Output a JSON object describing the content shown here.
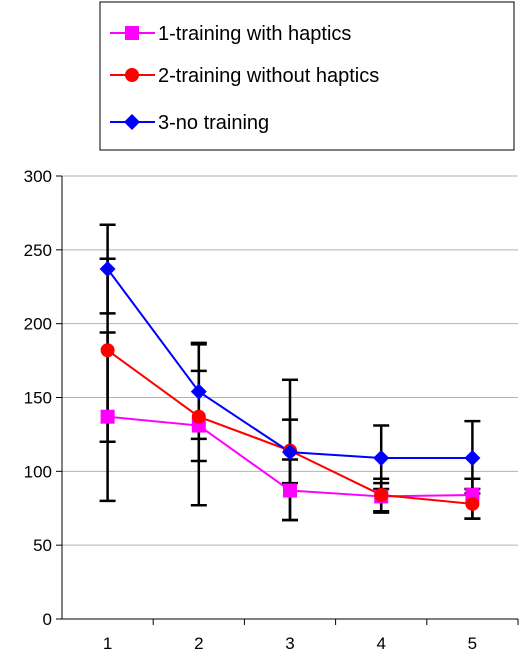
{
  "chart_data": {
    "type": "line",
    "title": "",
    "xlabel": "",
    "ylabel": "",
    "x": [
      1,
      2,
      3,
      4,
      5
    ],
    "x_ticks": [
      "1",
      "2",
      "3",
      "4",
      "5"
    ],
    "ylim": [
      0,
      300
    ],
    "y_ticks": [
      "0",
      "50",
      "100",
      "150",
      "200",
      "250",
      "300"
    ],
    "grid": "horizontal",
    "legend_position": "top-right",
    "series": [
      {
        "name": "1-training with haptics",
        "color": "#ff00ff",
        "marker": "square",
        "values": [
          137,
          131,
          87,
          83,
          84
        ],
        "error_low": [
          80,
          77,
          67,
          72,
          68
        ],
        "error_high": [
          194,
          186,
          108,
          95,
          95
        ]
      },
      {
        "name": "2-training without haptics",
        "color": "#ff0000",
        "marker": "circle",
        "values": [
          182,
          137,
          114,
          84,
          78
        ],
        "error_low": [
          120,
          107,
          67,
          73,
          68
        ],
        "error_high": [
          244,
          168,
          135,
          92,
          88
        ]
      },
      {
        "name": "3-no training",
        "color": "#0000ff",
        "marker": "diamond",
        "values": [
          237,
          154,
          113,
          109,
          109
        ],
        "error_low": [
          207,
          122,
          92,
          88,
          85
        ],
        "error_high": [
          267,
          187,
          162,
          131,
          134
        ]
      }
    ]
  }
}
